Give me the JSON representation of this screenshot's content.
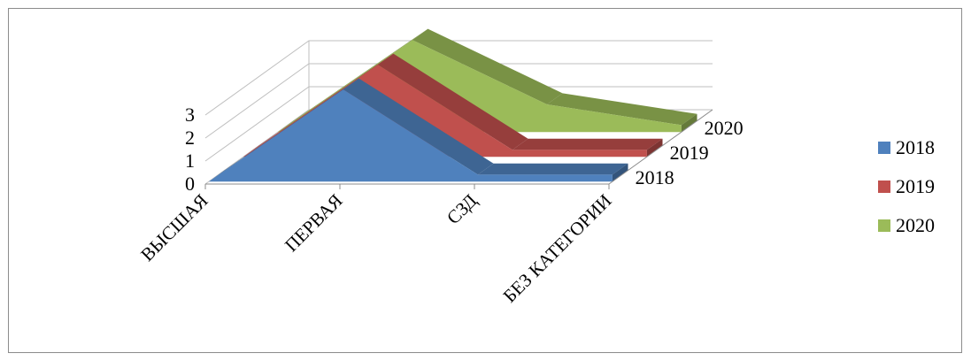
{
  "chart_data": {
    "type": "area",
    "title": "",
    "xlabel": "",
    "ylabel": "",
    "categories": [
      "ВЫСШАЯ",
      "ПЕРВАЯ",
      "СЗД",
      "БЕЗ КАТЕГОРИИ"
    ],
    "y_ticks": [
      "0",
      "1",
      "2",
      "3"
    ],
    "ylim": [
      0,
      3
    ],
    "depth_labels": [
      "2018",
      "2019",
      "2020"
    ],
    "series": [
      {
        "name": "2018",
        "color": "#4F81BD",
        "values": [
          0,
          4,
          0.3,
          0.3
        ]
      },
      {
        "name": "2019",
        "color": "#C0504D",
        "values": [
          0,
          4,
          0.3,
          0.3
        ]
      },
      {
        "name": "2020",
        "color": "#9BBB59",
        "values": [
          0,
          4,
          1.2,
          0.3
        ]
      }
    ],
    "legend": {
      "position": "right",
      "items": [
        "2018",
        "2019",
        "2020"
      ]
    },
    "grid": true,
    "projection": "3d"
  }
}
